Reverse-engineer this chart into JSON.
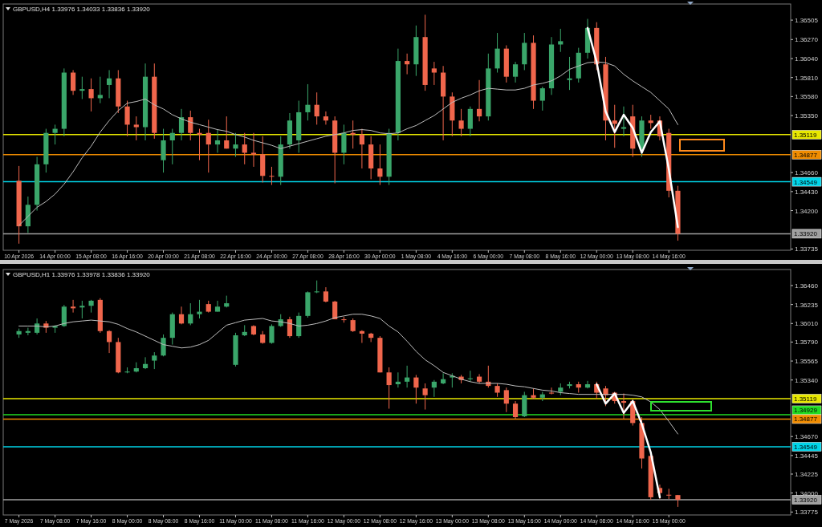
{
  "chart_data": [
    {
      "type": "candlestick",
      "title": "GBPUSD,H4 1.33976 1.34033 1.33836 1.33920",
      "categories": [
        "10 Apr 2026",
        null,
        null,
        null,
        "14 Apr 00:00",
        null,
        null,
        null,
        "15 Apr 08:00",
        null,
        null,
        null,
        "16 Apr 16:00",
        null,
        null,
        null,
        "20 Apr 00:00",
        null,
        null,
        null,
        "21 Apr 08:00",
        null,
        null,
        null,
        "22 Apr 16:00",
        null,
        null,
        null,
        "24 Apr 00:00",
        null,
        null,
        null,
        "27 Apr 08:00",
        null,
        null,
        null,
        "28 Apr 16:00",
        null,
        null,
        null,
        "30 Apr 00:00",
        null,
        null,
        null,
        "1 May 08:00",
        null,
        null,
        null,
        "4 May 16:00",
        null,
        null,
        null,
        "6 May 00:00",
        null,
        null,
        null,
        "7 May 08:00",
        null,
        null,
        null,
        "8 May 16:00",
        null,
        null,
        null,
        "12 May 00:00",
        null,
        null,
        null,
        "13 May 08:00",
        null,
        null,
        null,
        "14 May 16:00",
        null,
        null,
        null,
        null,
        null,
        null,
        null,
        null,
        null,
        null,
        null,
        null,
        null
      ],
      "ohlc": [
        [
          1.3456,
          1.3474,
          1.338,
          1.3401
        ],
        [
          1.3401,
          1.3437,
          1.3393,
          1.3427
        ],
        [
          1.3427,
          1.3485,
          1.342,
          1.3476
        ],
        [
          1.3476,
          1.3519,
          1.3466,
          1.3514
        ],
        [
          1.3514,
          1.3524,
          1.35,
          1.3519
        ],
        [
          1.3519,
          1.3592,
          1.351,
          1.3587
        ],
        [
          1.3587,
          1.359,
          1.356,
          1.3565
        ],
        [
          1.3565,
          1.3582,
          1.3555,
          1.3567
        ],
        [
          1.3567,
          1.358,
          1.354,
          1.3556
        ],
        [
          1.3556,
          1.3582,
          1.355,
          1.356
        ],
        [
          1.3572,
          1.359,
          1.3556,
          1.358
        ],
        [
          1.358,
          1.359,
          1.3538,
          1.3546
        ],
        [
          1.3546,
          1.3553,
          1.351,
          1.3524
        ],
        [
          1.3524,
          1.3534,
          1.3505,
          1.3521
        ],
        [
          1.3521,
          1.3598,
          1.3505,
          1.3582
        ],
        [
          1.3582,
          1.3598,
          1.3507,
          1.3514
        ],
        [
          1.3481,
          1.3519,
          1.3466,
          1.3505
        ],
        [
          1.3505,
          1.3519,
          1.3476,
          1.3514
        ],
        [
          1.3514,
          1.3543,
          1.3505,
          1.3533
        ],
        [
          1.3533,
          1.3541,
          1.3505,
          1.3514
        ],
        [
          1.3514,
          1.3519,
          1.3481,
          1.3512
        ],
        [
          1.3514,
          1.353,
          1.3466,
          1.35
        ],
        [
          1.35,
          1.3518,
          1.349,
          1.3505
        ],
        [
          1.3505,
          1.3534,
          1.3495,
          1.3495
        ],
        [
          1.3495,
          1.3514,
          1.3485,
          1.35
        ],
        [
          1.35,
          1.3514,
          1.3476,
          1.349
        ],
        [
          1.349,
          1.3514,
          1.3473,
          1.3488
        ],
        [
          1.3488,
          1.351,
          1.3454,
          1.3462
        ],
        [
          1.3462,
          1.3473,
          1.3451,
          1.3461
        ],
        [
          1.3461,
          1.351,
          1.3451,
          1.35
        ],
        [
          1.35,
          1.3538,
          1.3495,
          1.3529
        ],
        [
          1.3505,
          1.3553,
          1.349,
          1.3539
        ],
        [
          1.3539,
          1.3573,
          1.3529,
          1.3548
        ],
        [
          1.3548,
          1.3563,
          1.3524,
          1.3534
        ],
        [
          1.3534,
          1.354,
          1.3524,
          1.3529
        ],
        [
          1.3529,
          1.3534,
          1.3453,
          1.349
        ],
        [
          1.349,
          1.3524,
          1.3476,
          1.3514
        ],
        [
          1.3514,
          1.3529,
          1.3495,
          1.3512
        ],
        [
          1.3512,
          1.3519,
          1.3471,
          1.35
        ],
        [
          1.35,
          1.351,
          1.3458,
          1.3471
        ],
        [
          1.3471,
          1.35,
          1.3451,
          1.3461
        ],
        [
          1.3461,
          1.3519,
          1.3451,
          1.3514
        ],
        [
          1.3514,
          1.3616,
          1.3505,
          1.3601
        ],
        [
          1.3601,
          1.361,
          1.3585,
          1.3597
        ],
        [
          1.3597,
          1.3644,
          1.3583,
          1.363
        ],
        [
          1.363,
          1.3657,
          1.3565,
          1.3572
        ],
        [
          1.3592,
          1.36,
          1.3572,
          1.3587
        ],
        [
          1.3587,
          1.3595,
          1.3505,
          1.3558
        ],
        [
          1.3558,
          1.3563,
          1.351,
          1.3529
        ],
        [
          1.3529,
          1.3543,
          1.351,
          1.3519
        ],
        [
          1.3519,
          1.3546,
          1.351,
          1.3543
        ],
        [
          1.3543,
          1.3578,
          1.3528,
          1.3534
        ],
        [
          1.3534,
          1.361,
          1.3529,
          1.3592
        ],
        [
          1.3592,
          1.3635,
          1.3587,
          1.3616
        ],
        [
          1.3616,
          1.362,
          1.3575,
          1.3582
        ],
        [
          1.3582,
          1.36,
          1.3575,
          1.3597
        ],
        [
          1.3597,
          1.3635,
          1.359,
          1.3623
        ],
        [
          1.3623,
          1.3632,
          1.3543,
          1.3553
        ],
        [
          1.3553,
          1.357,
          1.3541,
          1.3568
        ],
        [
          1.3568,
          1.363,
          1.356,
          1.3621
        ],
        [
          1.3621,
          1.364,
          1.3612,
          1.3625
        ],
        [
          1.3578,
          1.3606,
          1.3566,
          1.358
        ],
        [
          1.358,
          1.3617,
          1.3575,
          1.3611
        ],
        [
          1.3611,
          1.3652,
          1.3604,
          1.3641
        ],
        [
          1.3641,
          1.3648,
          1.359,
          1.3597
        ],
        [
          1.3597,
          1.3606,
          1.3505,
          1.3529
        ],
        [
          1.3529,
          1.3548,
          1.3496,
          1.3525
        ],
        [
          1.3519,
          1.3546,
          1.351,
          1.3521
        ],
        [
          1.3534,
          1.3548,
          1.3485,
          1.3495
        ],
        [
          1.3495,
          1.3534,
          1.3485,
          1.3529
        ],
        [
          1.3529,
          1.3536,
          1.3519,
          1.3526
        ],
        [
          1.3529,
          1.3534,
          1.3505,
          1.351
        ],
        [
          1.3514,
          1.3519,
          1.3436,
          1.3444
        ],
        [
          1.3444,
          1.345,
          1.33836,
          1.3392
        ],
        null,
        null,
        null,
        null,
        null,
        null,
        null,
        null,
        null,
        null,
        null,
        null
      ],
      "series": [
        {
          "type": "line",
          "color": "#bdbdbd",
          "values": [
            1.3402,
            1.3413,
            1.3424,
            1.3431,
            1.344,
            1.3452,
            1.3467,
            1.3484,
            1.3498,
            1.3515,
            1.3529,
            1.3541,
            1.355,
            1.3552,
            1.3555,
            1.3548,
            1.3543,
            1.3536,
            1.3531,
            1.3527,
            1.3524,
            1.3521,
            1.3518,
            1.3516,
            1.3512,
            1.3509,
            1.3505,
            1.3502,
            1.3499,
            1.3495,
            1.3498,
            1.3501,
            1.3504,
            1.3507,
            1.351,
            1.3512,
            1.3514,
            1.3517,
            1.3518,
            1.3517,
            1.3514,
            1.3513,
            1.3514,
            1.3519,
            1.3523,
            1.3529,
            1.3535,
            1.3543,
            1.3551,
            1.3556,
            1.356,
            1.3565,
            1.3568,
            1.3567,
            1.3566,
            1.3566,
            1.3568,
            1.3572,
            1.3574,
            1.3577,
            1.3583,
            1.3591,
            1.3595,
            1.3599,
            1.36,
            1.3599,
            1.3595,
            1.3585,
            1.3577,
            1.357,
            1.3563,
            1.3553,
            1.3543,
            1.3524,
            null,
            null,
            null,
            null,
            null,
            null,
            null,
            null,
            null,
            null,
            null,
            null
          ]
        },
        {
          "type": "line",
          "color": "#ffffff",
          "values": [
            null,
            null,
            null,
            null,
            null,
            null,
            null,
            null,
            null,
            null,
            null,
            null,
            null,
            null,
            null,
            null,
            null,
            null,
            null,
            null,
            null,
            null,
            null,
            null,
            null,
            null,
            null,
            null,
            null,
            null,
            null,
            null,
            null,
            null,
            null,
            null,
            null,
            null,
            null,
            null,
            null,
            null,
            null,
            null,
            null,
            null,
            null,
            null,
            null,
            null,
            null,
            null,
            null,
            null,
            null,
            null,
            null,
            null,
            null,
            null,
            null,
            null,
            null,
            1.3641,
            1.36,
            1.354,
            1.3515,
            1.3536,
            1.352,
            1.349,
            1.3515,
            1.3528,
            1.347,
            1.34,
            null,
            null,
            null,
            null,
            null,
            null,
            null,
            null,
            null,
            null,
            null,
            null
          ]
        }
      ],
      "ylim": [
        1.3372,
        1.367
      ],
      "yticks": [
        1.36505,
        {
          "value": 1.3627,
          "label": "1.36270"
        },
        {
          "value": 1.3604,
          "label": "1.36040"
        },
        {
          "value": 1.3581,
          "label": "1.35810"
        },
        {
          "value": 1.3558,
          "label": "1.35580"
        },
        {
          "value": 1.3535,
          "label": "1.35350"
        },
        {
          "value": 1.3466,
          "label": "1.34660"
        },
        {
          "value": 1.3443,
          "label": "1.34430"
        },
        {
          "value": 1.342,
          "label": "1.34200"
        },
        1.33735
      ],
      "ref_lines": [
        {
          "axis": "y",
          "value": 1.35119,
          "label": "1.35119",
          "color": "#e8e800"
        },
        {
          "axis": "y",
          "value": 1.34877,
          "label": "1.34877",
          "color": "#f08c00"
        },
        {
          "axis": "y",
          "value": 1.34549,
          "label": "1.34549",
          "color": "#00d4e8"
        },
        {
          "axis": "y",
          "value": 1.3392,
          "label": "1.33920",
          "color": "#a0a0a0"
        }
      ]
    },
    {
      "type": "candlestick",
      "title": "GBPUSD,H1 1.33976 1.33978 1.33836 1.33920",
      "categories": [
        "7 May 2026",
        null,
        null,
        null,
        "7 May 08:00",
        null,
        null,
        null,
        "7 May 16:00",
        null,
        null,
        null,
        "8 May 00:00",
        null,
        null,
        null,
        "8 May 08:00",
        null,
        null,
        null,
        "8 May 16:00",
        null,
        null,
        null,
        "11 May 00:00",
        null,
        null,
        null,
        "11 May 08:00",
        null,
        null,
        null,
        "11 May 16:00",
        null,
        null,
        null,
        "12 May 00:00",
        null,
        null,
        null,
        "12 May 08:00",
        null,
        null,
        null,
        "12 May 16:00",
        null,
        null,
        null,
        "13 May 00:00",
        null,
        null,
        null,
        "13 May 08:00",
        null,
        null,
        null,
        "13 May 16:00",
        null,
        null,
        null,
        "14 May 00:00",
        null,
        null,
        null,
        "14 May 08:00",
        null,
        null,
        null,
        "14 May 16:00",
        null,
        null,
        null,
        "15 May 00:00",
        null,
        null,
        null,
        null,
        null,
        null,
        null,
        null,
        null,
        null,
        null,
        null,
        null
      ],
      "ohlc": [
        [
          1.3588,
          1.3595,
          1.3584,
          1.3592
        ],
        [
          1.359,
          1.3596,
          1.3587,
          1.3592
        ],
        [
          1.359,
          1.3607,
          1.3588,
          1.3601
        ],
        [
          1.3601,
          1.3604,
          1.359,
          1.3596
        ],
        [
          1.3596,
          1.3599,
          1.359,
          1.3598
        ],
        [
          1.3598,
          1.3623,
          1.3597,
          1.3621
        ],
        [
          1.3621,
          1.3629,
          1.3614,
          1.3619
        ],
        [
          1.362,
          1.3628,
          1.3607,
          1.3622
        ],
        [
          1.3622,
          1.3629,
          1.3614,
          1.3628
        ],
        [
          1.3629,
          1.3631,
          1.359,
          1.3592
        ],
        [
          1.3592,
          1.3593,
          1.3566,
          1.3579
        ],
        [
          1.3579,
          1.3584,
          1.3542,
          1.3543
        ],
        [
          1.3543,
          1.3549,
          1.3542,
          1.3544
        ],
        [
          1.3544,
          1.3555,
          1.3543,
          1.3548
        ],
        [
          1.3548,
          1.3561,
          1.3547,
          1.3553
        ],
        [
          1.3557,
          1.3567,
          1.3547,
          1.3563
        ],
        [
          1.3563,
          1.3588,
          1.3562,
          1.3584
        ],
        [
          1.3584,
          1.3614,
          1.3576,
          1.3612
        ],
        [
          1.3612,
          1.3621,
          1.36,
          1.3601
        ],
        [
          1.3601,
          1.3625,
          1.3599,
          1.3612
        ],
        [
          1.3612,
          1.3629,
          1.3607,
          1.3615
        ],
        [
          1.3624,
          1.3628,
          1.3614,
          1.3615
        ],
        [
          1.3615,
          1.3628,
          1.3615,
          1.3621
        ],
        [
          1.3621,
          1.3634,
          1.362,
          1.3625
        ],
        [
          1.3552,
          1.359,
          1.355,
          1.3587
        ],
        [
          1.3587,
          1.3599,
          1.3586,
          1.3591
        ],
        [
          1.3598,
          1.3599,
          1.3587,
          1.3588
        ],
        [
          1.3588,
          1.3592,
          1.3577,
          1.3578
        ],
        [
          1.3578,
          1.36,
          1.3577,
          1.3598
        ],
        [
          1.3598,
          1.3612,
          1.3597,
          1.3606
        ],
        [
          1.3606,
          1.3609,
          1.3584,
          1.3586
        ],
        [
          1.3586,
          1.3614,
          1.3584,
          1.361
        ],
        [
          1.361,
          1.3639,
          1.3608,
          1.3638
        ],
        [
          1.3638,
          1.3652,
          1.3637,
          1.3639
        ],
        [
          1.3639,
          1.3644,
          1.3626,
          1.3627
        ],
        [
          1.3627,
          1.3628,
          1.3606,
          1.3606
        ],
        [
          1.3606,
          1.3609,
          1.3602,
          1.3605
        ],
        [
          1.3605,
          1.3607,
          1.3591,
          1.3592
        ],
        [
          1.3592,
          1.3593,
          1.3578,
          1.3589
        ],
        [
          1.3589,
          1.359,
          1.3579,
          1.3584
        ],
        [
          1.3584,
          1.3586,
          1.3543,
          1.3543
        ],
        [
          1.3543,
          1.3549,
          1.35,
          1.3528
        ],
        [
          1.3529,
          1.3543,
          1.3525,
          1.3532
        ],
        [
          1.3532,
          1.3551,
          1.3525,
          1.3537
        ],
        [
          1.3537,
          1.354,
          1.3506,
          1.3525
        ],
        [
          1.3524,
          1.353,
          1.3499,
          1.3516
        ],
        [
          1.3525,
          1.3534,
          1.3514,
          1.3532
        ],
        [
          1.353,
          1.3542,
          1.3529,
          1.3535
        ],
        [
          1.3537,
          1.3542,
          1.3525,
          1.3539
        ],
        [
          1.3538,
          1.354,
          1.353,
          1.3534
        ],
        [
          1.3535,
          1.3545,
          1.3532,
          1.3536
        ],
        [
          1.3538,
          1.3541,
          1.353,
          1.3532
        ],
        [
          1.3532,
          1.3551,
          1.3525,
          1.3527
        ],
        [
          1.3527,
          1.353,
          1.3514,
          1.3519
        ],
        [
          1.3522,
          1.3525,
          1.3496,
          1.3506
        ],
        [
          1.3506,
          1.3509,
          1.3488,
          1.349
        ],
        [
          1.3491,
          1.352,
          1.349,
          1.3516
        ],
        [
          1.3516,
          1.3524,
          1.3511,
          1.3513
        ],
        [
          1.3513,
          1.352,
          1.3509,
          1.3517
        ],
        [
          1.3519,
          1.3525,
          1.3517,
          1.3518
        ],
        [
          1.352,
          1.353,
          1.3516,
          1.3525
        ],
        [
          1.3527,
          1.3532,
          1.3524,
          1.3529
        ],
        [
          1.3529,
          1.3532,
          1.3519,
          1.3525
        ],
        [
          1.3525,
          1.3533,
          1.3524,
          1.3529
        ],
        [
          1.3529,
          1.3532,
          1.3512,
          1.3519
        ],
        [
          1.3524,
          1.3527,
          1.3503,
          1.3516
        ],
        [
          1.3519,
          1.352,
          1.3506,
          1.3509
        ],
        [
          1.3509,
          1.3518,
          1.3488,
          1.3507
        ],
        [
          1.3509,
          1.3511,
          1.348,
          1.3483
        ],
        [
          1.3483,
          1.349,
          1.3429,
          1.3441
        ],
        [
          1.3444,
          1.3445,
          1.3392,
          1.3395
        ],
        [
          1.3406,
          1.341,
          1.3393,
          1.34
        ],
        [
          1.3398,
          1.3405,
          1.3393,
          1.3397
        ],
        [
          1.33976,
          1.33978,
          1.33836,
          1.3392
        ],
        null,
        null,
        null,
        null,
        null,
        null,
        null,
        null,
        null,
        null,
        null,
        null
      ],
      "series": [
        {
          "type": "line",
          "color": "#bdbdbd",
          "values": [
            1.3598,
            1.3598,
            1.3598,
            1.3597,
            1.3598,
            1.3601,
            1.3603,
            1.3604,
            1.3605,
            1.3604,
            1.3603,
            1.36,
            1.3595,
            1.3591,
            1.3586,
            1.3581,
            1.3576,
            1.3574,
            1.3572,
            1.3573,
            1.3576,
            1.3581,
            1.359,
            1.3599,
            1.3602,
            1.3605,
            1.3606,
            1.3607,
            1.3604,
            1.3603,
            1.3601,
            1.3598,
            1.3599,
            1.3601,
            1.3604,
            1.3608,
            1.361,
            1.3612,
            1.3612,
            1.361,
            1.3607,
            1.3598,
            1.3591,
            1.358,
            1.3568,
            1.3558,
            1.3551,
            1.3543,
            1.3539,
            1.3535,
            1.3532,
            1.353,
            1.353,
            1.353,
            1.3529,
            1.3527,
            1.3526,
            1.3524,
            1.3522,
            1.3521,
            1.3519,
            1.3518,
            1.3517,
            1.3517,
            1.3517,
            1.3517,
            1.3517,
            1.3517,
            1.3516,
            1.3514,
            1.3508,
            1.3499,
            1.3485,
            1.347,
            null,
            null,
            null,
            null,
            null,
            null,
            null,
            null,
            null,
            null,
            null,
            null
          ]
        },
        {
          "type": "line",
          "color": "#ffffff",
          "values": [
            null,
            null,
            null,
            null,
            null,
            null,
            null,
            null,
            null,
            null,
            null,
            null,
            null,
            null,
            null,
            null,
            null,
            null,
            null,
            null,
            null,
            null,
            null,
            null,
            null,
            null,
            null,
            null,
            null,
            null,
            null,
            null,
            null,
            null,
            null,
            null,
            null,
            null,
            null,
            null,
            null,
            null,
            null,
            null,
            null,
            null,
            null,
            null,
            null,
            null,
            null,
            null,
            null,
            null,
            null,
            null,
            null,
            null,
            null,
            null,
            null,
            null,
            null,
            null,
            1.3529,
            1.3506,
            1.3518,
            1.3495,
            1.3509,
            1.3482,
            1.3448,
            1.3395,
            null,
            null,
            null,
            null,
            null,
            null,
            null,
            null,
            null,
            null,
            null,
            null,
            null,
            null
          ]
        }
      ],
      "ylim": [
        1.3374,
        1.3665
      ],
      "yticks": [
        {
          "value": 1.3646,
          "label": "1.36460"
        },
        1.36235,
        {
          "value": 1.3601,
          "label": "1.36010"
        },
        {
          "value": 1.3579,
          "label": "1.35790"
        },
        1.35565,
        {
          "value": 1.3534,
          "label": "1.35340"
        },
        {
          "value": 1.3467,
          "label": "1.34670"
        },
        1.34445,
        1.34225,
        {
          "value": 1.34,
          "label": "1.34000"
        },
        1.33775
      ],
      "ref_lines": [
        {
          "axis": "y",
          "value": 1.35119,
          "label": "1.35119",
          "color": "#e8e800"
        },
        {
          "axis": "y",
          "value": 1.34929,
          "label": "1.34929",
          "color": "#22dd22"
        },
        {
          "axis": "y",
          "value": 1.34877,
          "label": "1.34877",
          "color": "#f08c00"
        },
        {
          "axis": "y",
          "value": 1.34549,
          "label": "1.34549",
          "color": "#00d4e8"
        },
        {
          "axis": "y",
          "value": 1.3392,
          "label": "1.33920",
          "color": "#a0a0a0"
        }
      ]
    }
  ]
}
